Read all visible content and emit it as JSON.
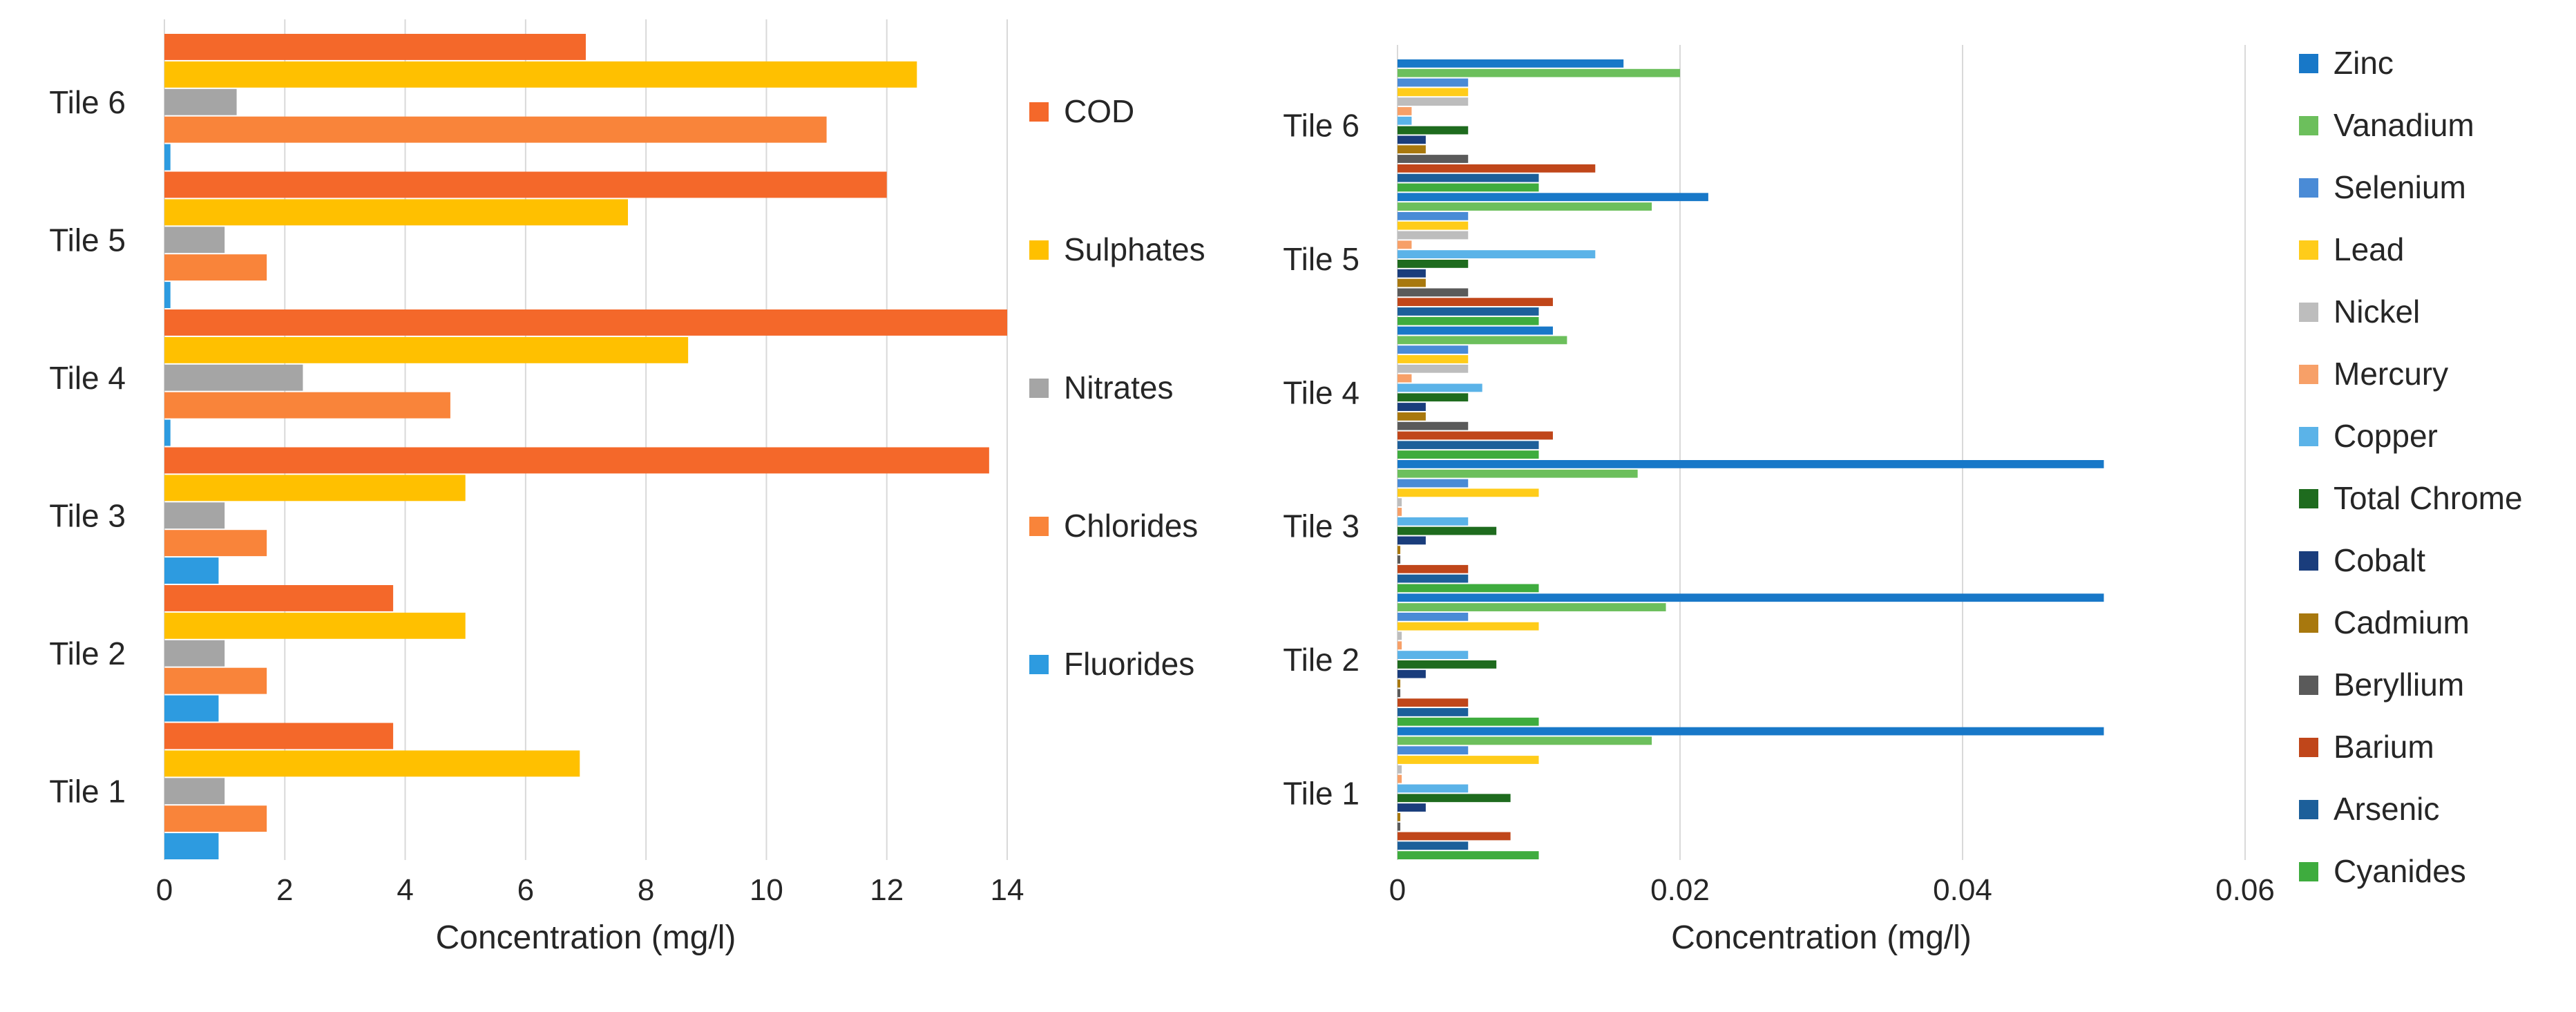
{
  "chart_data": [
    {
      "type": "bar",
      "orientation": "horizontal",
      "xlabel": "Concentration (mg/l)",
      "xlim": [
        0,
        14
      ],
      "xticks": [
        "0",
        "2",
        "4",
        "6",
        "8",
        "10",
        "12",
        "14"
      ],
      "grid": "vertical",
      "legend_position": "right",
      "categories": [
        "Tile 6",
        "Tile 5",
        "Tile 4",
        "Tile 3",
        "Tile 2",
        "Tile 1"
      ],
      "series": [
        {
          "name": "COD",
          "color": "#f4682a",
          "values": [
            7.0,
            12.0,
            14.0,
            13.7,
            3.8,
            3.8
          ]
        },
        {
          "name": "Sulphates",
          "color": "#ffc000",
          "values": [
            12.5,
            7.7,
            8.7,
            5.0,
            5.0,
            6.9
          ]
        },
        {
          "name": "Nitrates",
          "color": "#a5a5a5",
          "values": [
            1.2,
            1.0,
            2.3,
            1.0,
            1.0,
            1.0
          ]
        },
        {
          "name": "Chlorides",
          "color": "#f9843a",
          "values": [
            11.0,
            1.7,
            4.75,
            1.7,
            1.7,
            1.7
          ]
        },
        {
          "name": "Fluorides",
          "color": "#2d9be0",
          "values": [
            0.1,
            0.1,
            0.1,
            0.9,
            0.9,
            0.9
          ]
        }
      ]
    },
    {
      "type": "bar",
      "orientation": "horizontal",
      "xlabel": "Concentration (mg/l)",
      "xlim": [
        0,
        0.06
      ],
      "xticks": [
        "0",
        "0.02",
        "0.04",
        "0.06"
      ],
      "grid": "vertical",
      "legend_position": "right",
      "categories": [
        "Tile 6",
        "Tile 5",
        "Tile 4",
        "Tile 3",
        "Tile 2",
        "Tile 1"
      ],
      "series": [
        {
          "name": "Zinc",
          "color": "#1878c8",
          "values": [
            0.016,
            0.022,
            0.011,
            0.05,
            0.05,
            0.05
          ]
        },
        {
          "name": "Vanadium",
          "color": "#6cbf5c",
          "values": [
            0.02,
            0.018,
            0.012,
            0.017,
            0.019,
            0.018
          ]
        },
        {
          "name": "Selenium",
          "color": "#4a8bd6",
          "values": [
            0.005,
            0.005,
            0.005,
            0.005,
            0.005,
            0.005
          ]
        },
        {
          "name": "Lead",
          "color": "#ffcc1a",
          "values": [
            0.005,
            0.005,
            0.005,
            0.01,
            0.01,
            0.01
          ]
        },
        {
          "name": "Nickel",
          "color": "#bdbdbd",
          "values": [
            0.005,
            0.005,
            0.005,
            0.0003,
            0.0003,
            0.0003
          ]
        },
        {
          "name": "Mercury",
          "color": "#f7a068",
          "values": [
            0.001,
            0.001,
            0.001,
            0.0003,
            0.0003,
            0.0003
          ]
        },
        {
          "name": "Copper",
          "color": "#5bb3e8",
          "values": [
            0.001,
            0.014,
            0.006,
            0.005,
            0.005,
            0.005
          ]
        },
        {
          "name": "Total Chrome",
          "color": "#1e6b1e",
          "values": [
            0.005,
            0.005,
            0.005,
            0.007,
            0.007,
            0.008
          ]
        },
        {
          "name": "Cobalt",
          "color": "#1a3d7c",
          "values": [
            0.002,
            0.002,
            0.002,
            0.002,
            0.002,
            0.002
          ]
        },
        {
          "name": "Cadmium",
          "color": "#a8780e",
          "values": [
            0.002,
            0.002,
            0.002,
            0.0002,
            0.0002,
            0.0002
          ]
        },
        {
          "name": "Beryllium",
          "color": "#5a5a5a",
          "values": [
            0.005,
            0.005,
            0.005,
            0.0002,
            0.0002,
            0.0002
          ]
        },
        {
          "name": "Barium",
          "color": "#c0461a",
          "values": [
            0.014,
            0.011,
            0.011,
            0.005,
            0.005,
            0.008
          ]
        },
        {
          "name": "Arsenic",
          "color": "#1c5f9a",
          "values": [
            0.01,
            0.01,
            0.01,
            0.005,
            0.005,
            0.005
          ]
        },
        {
          "name": "Cyanides",
          "color": "#3eac3e",
          "values": [
            0.01,
            0.01,
            0.01,
            0.01,
            0.01,
            0.01
          ]
        }
      ]
    }
  ]
}
